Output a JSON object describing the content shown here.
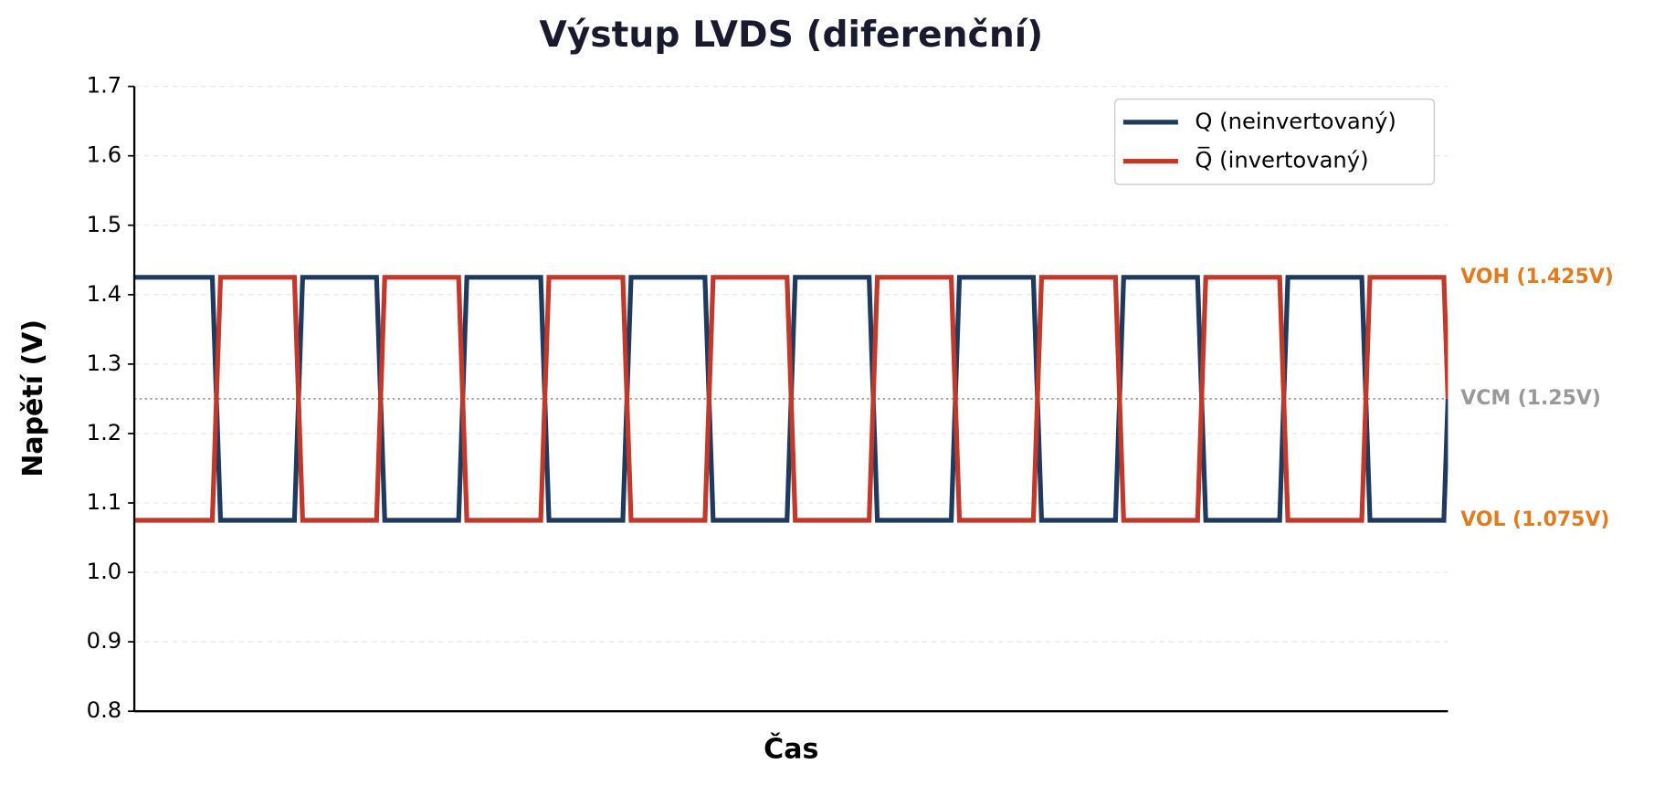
{
  "chart_data": {
    "type": "line",
    "title": "Výstup LVDS (diferenční)",
    "x_label": "Čas",
    "y_label": "Napětí (V)",
    "xlim": [
      0,
      16
    ],
    "ylim": [
      0.8,
      1.7
    ],
    "yticks": [
      0.8,
      0.9,
      {
        "value": 1,
        "label": "1.0"
      },
      1.1,
      1.2,
      1.3,
      1.4,
      1.5,
      1.6,
      1.7
    ],
    "grid": true,
    "legend": "upper right",
    "x": [
      0,
      0.95,
      1.05,
      1.95,
      2.05,
      2.95,
      3.05,
      3.95,
      4.05,
      4.95,
      5.05,
      5.95,
      6.05,
      6.95,
      7.05,
      7.95,
      8.05,
      8.95,
      9.05,
      9.95,
      10.05,
      10.95,
      11.05,
      11.95,
      12.05,
      12.95,
      13.05,
      13.95,
      14.05,
      14.95,
      15.05,
      15.95,
      16
    ],
    "series": [
      {
        "name": "Q (neinvertovaný)",
        "color": "#1f3a5f",
        "values": [
          1.425,
          1.425,
          1.075,
          1.075,
          1.425,
          1.425,
          1.075,
          1.075,
          1.425,
          1.425,
          1.075,
          1.075,
          1.425,
          1.425,
          1.075,
          1.075,
          1.425,
          1.425,
          1.075,
          1.075,
          1.425,
          1.425,
          1.075,
          1.075,
          1.425,
          1.425,
          1.075,
          1.075,
          1.425,
          1.425,
          1.075,
          1.075,
          1.25
        ]
      },
      {
        "name": "Q̅ (invertovaný)",
        "color": "#c0392b",
        "values": [
          1.075,
          1.075,
          1.425,
          1.425,
          1.075,
          1.075,
          1.425,
          1.425,
          1.075,
          1.075,
          1.425,
          1.425,
          1.075,
          1.075,
          1.425,
          1.425,
          1.075,
          1.075,
          1.425,
          1.425,
          1.075,
          1.075,
          1.425,
          1.425,
          1.075,
          1.075,
          1.425,
          1.425,
          1.075,
          1.075,
          1.425,
          1.425,
          1.25
        ]
      }
    ],
    "reference_lines": [
      {
        "label": "VOH (1.425V)",
        "value": 1.425,
        "color": "#e07b20",
        "line": false
      },
      {
        "label": "VCM (1.25V)",
        "value": 1.25,
        "color": "#999999",
        "line": true
      },
      {
        "label": "VOL (1.075V)",
        "value": 1.075,
        "color": "#e07b20",
        "line": false
      }
    ]
  }
}
